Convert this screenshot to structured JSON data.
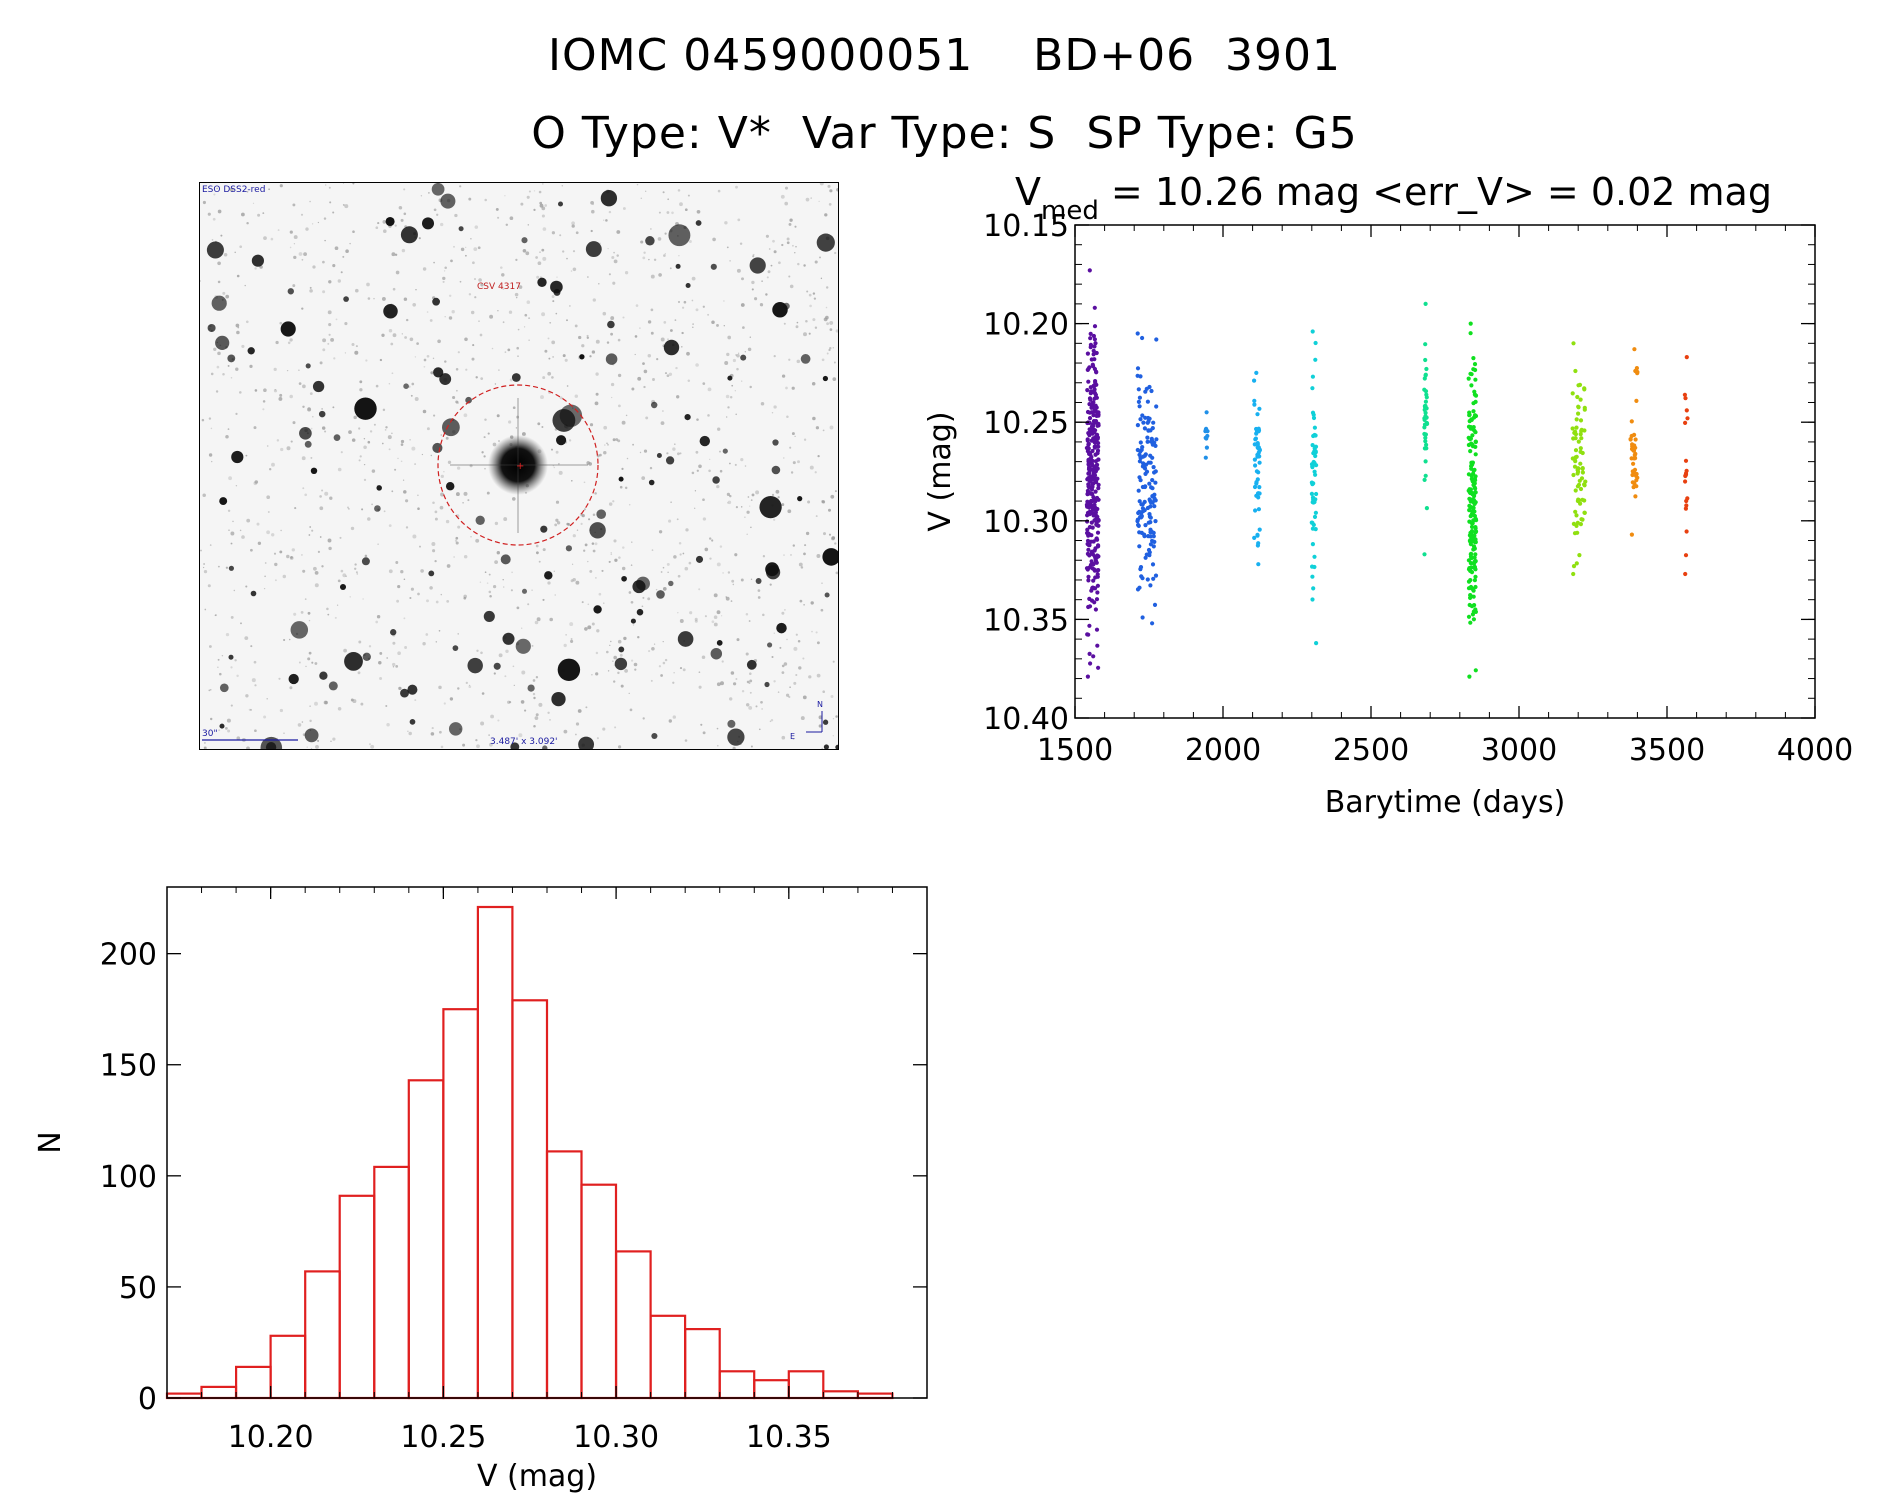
{
  "header": {
    "title_line1": "IOMC 0459000051    BD+06  3901",
    "title_line2": "O Type: V*  Var Type: S  SP Type: G5"
  },
  "finder_chart": {
    "survey_label": "ESO DSS2-red",
    "object_label": "CSV 4317",
    "scale_label": "30\"",
    "fov_label": "3.487' x 3.092'",
    "north_label": "N",
    "east_label": "E",
    "circle_color": "#d02020"
  },
  "chart_data": [
    {
      "type": "scatter",
      "title_prefix": "V",
      "title_subscript": "med",
      "title_rest": " = 10.26 mag <err_V> = 0.02 mag",
      "xlabel": "Barytime (days)",
      "ylabel": "V (mag)",
      "xlim": [
        1500,
        4000
      ],
      "ylim": [
        10.4,
        10.15
      ],
      "y_inverted": true,
      "xticks": [
        1500,
        2000,
        2500,
        3000,
        3500,
        4000
      ],
      "xtick_labels": [
        "1500",
        "2000",
        "2500",
        "3000",
        "3500",
        "4000"
      ],
      "yticks": [
        10.15,
        10.2,
        10.25,
        10.3,
        10.35,
        10.4
      ],
      "ytick_labels": [
        "10.15",
        "10.20",
        "10.25",
        "10.30",
        "10.35",
        "10.40"
      ],
      "groups": [
        {
          "t_min": 1540,
          "t_max": 1580,
          "v_min": 10.173,
          "v_max": 10.379,
          "n": 320,
          "color": "#5a0fa0"
        },
        {
          "t_min": 1710,
          "t_max": 1775,
          "v_min": 10.205,
          "v_max": 10.352,
          "n": 150,
          "color": "#2060e0"
        },
        {
          "t_min": 1940,
          "t_max": 1950,
          "v_min": 10.245,
          "v_max": 10.268,
          "n": 10,
          "color": "#2090e8"
        },
        {
          "t_min": 2105,
          "t_max": 2125,
          "v_min": 10.225,
          "v_max": 10.322,
          "n": 50,
          "color": "#18b0f0"
        },
        {
          "t_min": 2300,
          "t_max": 2315,
          "v_min": 10.204,
          "v_max": 10.362,
          "n": 55,
          "color": "#10d0d8"
        },
        {
          "t_min": 2680,
          "t_max": 2690,
          "v_min": 10.19,
          "v_max": 10.317,
          "n": 40,
          "color": "#10e090"
        },
        {
          "t_min": 2830,
          "t_max": 2855,
          "v_min": 10.2,
          "v_max": 10.379,
          "n": 200,
          "color": "#10e020"
        },
        {
          "t_min": 3180,
          "t_max": 3225,
          "v_min": 10.21,
          "v_max": 10.327,
          "n": 80,
          "color": "#90e010"
        },
        {
          "t_min": 3375,
          "t_max": 3400,
          "v_min": 10.213,
          "v_max": 10.307,
          "n": 40,
          "color": "#f08c10"
        },
        {
          "t_min": 3560,
          "t_max": 3570,
          "v_min": 10.217,
          "v_max": 10.327,
          "n": 20,
          "color": "#e84010"
        }
      ]
    },
    {
      "type": "bar",
      "xlabel": "V (mag)",
      "ylabel": "N",
      "bar_color": "#e02020",
      "bin_width": 0.01,
      "bin_starts": [
        10.17,
        10.18,
        10.19,
        10.2,
        10.21,
        10.22,
        10.23,
        10.24,
        10.25,
        10.26,
        10.27,
        10.28,
        10.29,
        10.3,
        10.31,
        10.32,
        10.33,
        10.34,
        10.35,
        10.36,
        10.37
      ],
      "values": [
        2,
        5,
        14,
        28,
        57,
        91,
        104,
        143,
        175,
        221,
        179,
        111,
        96,
        66,
        37,
        31,
        12,
        8,
        12,
        3,
        2
      ],
      "xlim": [
        10.17,
        10.39
      ],
      "ylim": [
        0,
        230
      ],
      "xticks": [
        10.2,
        10.25,
        10.3,
        10.35
      ],
      "xtick_labels": [
        "10.20",
        "10.25",
        "10.30",
        "10.35"
      ],
      "yticks": [
        0,
        50,
        100,
        150,
        200
      ],
      "ytick_labels": [
        "0",
        "50",
        "100",
        "150",
        "200"
      ]
    }
  ]
}
